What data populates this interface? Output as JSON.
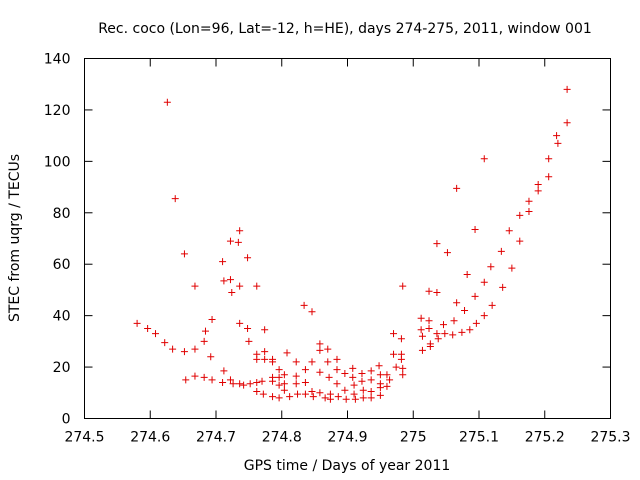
{
  "chart_data": {
    "type": "scatter",
    "title": "Rec. coco (Lon=96, Lat=-12, h=HE), days 274-275, 2011, window 001",
    "xlabel": "GPS time / Days of year 2011",
    "ylabel": "STEC from uqrg / TECUs",
    "xlim": [
      274.5,
      275.3
    ],
    "ylim": [
      0,
      140
    ],
    "xticks": [
      "274.5",
      "274.6",
      "274.7",
      "274.8",
      "274.9",
      "275",
      "275.1",
      "275.2",
      "275.3"
    ],
    "yticks": [
      "0",
      "20",
      "40",
      "60",
      "80",
      "100",
      "120",
      "140"
    ],
    "grid": false,
    "marker": "+",
    "color": "#e00000",
    "points": [
      [
        274.58,
        37.0
      ],
      [
        274.596,
        35.0
      ],
      [
        274.608,
        33.0
      ],
      [
        274.622,
        29.5
      ],
      [
        274.634,
        27.0
      ],
      [
        274.652,
        26.0
      ],
      [
        274.668,
        27.0
      ],
      [
        274.682,
        30.0
      ],
      [
        274.684,
        34.0
      ],
      [
        274.694,
        38.5
      ],
      [
        274.626,
        123.0
      ],
      [
        274.638,
        85.5
      ],
      [
        274.652,
        64.0
      ],
      [
        274.668,
        51.5
      ],
      [
        274.654,
        15.0
      ],
      [
        274.668,
        16.5
      ],
      [
        274.682,
        16.0
      ],
      [
        274.694,
        15.0
      ],
      [
        274.692,
        24.0
      ],
      [
        274.71,
        14.0
      ],
      [
        274.712,
        18.5
      ],
      [
        274.722,
        15.0
      ],
      [
        274.726,
        13.5
      ],
      [
        274.736,
        13.5
      ],
      [
        274.742,
        13.0
      ],
      [
        274.752,
        13.5
      ],
      [
        274.762,
        14.0
      ],
      [
        274.77,
        14.5
      ],
      [
        274.71,
        61.0
      ],
      [
        274.712,
        53.5
      ],
      [
        274.722,
        69.0
      ],
      [
        274.722,
        54.0
      ],
      [
        274.724,
        49.0
      ],
      [
        274.734,
        68.5
      ],
      [
        274.736,
        73.0
      ],
      [
        274.736,
        51.5
      ],
      [
        274.736,
        37.0
      ],
      [
        274.748,
        62.5
      ],
      [
        274.748,
        35.0
      ],
      [
        274.75,
        30.0
      ],
      [
        274.762,
        51.5
      ],
      [
        274.762,
        25.0
      ],
      [
        274.762,
        23.0
      ],
      [
        274.774,
        34.5
      ],
      [
        274.774,
        26.0
      ],
      [
        274.774,
        23.0
      ],
      [
        274.786,
        23.0
      ],
      [
        274.786,
        22.0
      ],
      [
        274.762,
        10.5
      ],
      [
        274.772,
        9.5
      ],
      [
        274.786,
        14.5
      ],
      [
        274.786,
        16.0
      ],
      [
        274.786,
        8.5
      ],
      [
        274.796,
        19.0
      ],
      [
        274.796,
        16.0
      ],
      [
        274.796,
        13.0
      ],
      [
        274.796,
        8.0
      ],
      [
        274.804,
        17.0
      ],
      [
        274.804,
        13.5
      ],
      [
        274.804,
        11.0
      ],
      [
        274.808,
        25.5
      ],
      [
        274.812,
        8.5
      ],
      [
        274.822,
        22.0
      ],
      [
        274.822,
        16.5
      ],
      [
        274.822,
        13.5
      ],
      [
        274.824,
        9.5
      ],
      [
        274.834,
        44.0
      ],
      [
        274.846,
        41.5
      ],
      [
        274.836,
        19.0
      ],
      [
        274.836,
        14.0
      ],
      [
        274.836,
        9.5
      ],
      [
        274.846,
        22.0
      ],
      [
        274.846,
        10.5
      ],
      [
        274.848,
        8.5
      ],
      [
        274.858,
        29.0
      ],
      [
        274.858,
        26.5
      ],
      [
        274.858,
        18.0
      ],
      [
        274.858,
        10.0
      ],
      [
        274.866,
        8.0
      ],
      [
        274.87,
        27.0
      ],
      [
        274.87,
        22.0
      ],
      [
        274.872,
        16.0
      ],
      [
        274.874,
        9.5
      ],
      [
        274.874,
        7.5
      ],
      [
        274.884,
        23.0
      ],
      [
        274.884,
        19.0
      ],
      [
        274.884,
        13.5
      ],
      [
        274.886,
        8.5
      ],
      [
        274.896,
        17.5
      ],
      [
        274.896,
        11.0
      ],
      [
        274.898,
        7.5
      ],
      [
        274.908,
        19.5
      ],
      [
        274.908,
        16.0
      ],
      [
        274.91,
        13.0
      ],
      [
        274.91,
        9.5
      ],
      [
        274.912,
        7.5
      ],
      [
        274.922,
        17.5
      ],
      [
        274.922,
        14.5
      ],
      [
        274.924,
        11.0
      ],
      [
        274.924,
        8.0
      ],
      [
        274.936,
        18.5
      ],
      [
        274.936,
        15.0
      ],
      [
        274.936,
        10.5
      ],
      [
        274.936,
        8.0
      ],
      [
        274.948,
        20.5
      ],
      [
        274.95,
        17.0
      ],
      [
        274.95,
        13.5
      ],
      [
        274.95,
        9.0
      ],
      [
        274.95,
        12.0
      ],
      [
        274.96,
        17.0
      ],
      [
        274.96,
        12.5
      ],
      [
        274.964,
        15.0
      ],
      [
        274.97,
        33.0
      ],
      [
        274.97,
        25.0
      ],
      [
        274.974,
        20.0
      ],
      [
        274.982,
        31.0
      ],
      [
        274.982,
        25.0
      ],
      [
        274.982,
        23.0
      ],
      [
        274.984,
        19.5
      ],
      [
        274.984,
        17.0
      ],
      [
        274.984,
        51.5
      ],
      [
        275.012,
        39.0
      ],
      [
        275.012,
        34.5
      ],
      [
        275.014,
        32.0
      ],
      [
        275.014,
        26.5
      ],
      [
        275.024,
        49.5
      ],
      [
        275.024,
        38.0
      ],
      [
        275.024,
        35.0
      ],
      [
        275.026,
        29.0
      ],
      [
        275.026,
        28.0
      ],
      [
        275.036,
        68.0
      ],
      [
        275.036,
        49.0
      ],
      [
        275.036,
        33.0
      ],
      [
        275.038,
        31.0
      ],
      [
        275.046,
        36.5
      ],
      [
        275.048,
        33.0
      ],
      [
        275.052,
        64.5
      ],
      [
        275.06,
        32.5
      ],
      [
        275.062,
        38.0
      ],
      [
        275.066,
        89.5
      ],
      [
        275.066,
        45.0
      ],
      [
        275.074,
        33.5
      ],
      [
        275.078,
        42.0
      ],
      [
        275.082,
        56.0
      ],
      [
        275.086,
        34.5
      ],
      [
        275.094,
        73.5
      ],
      [
        275.094,
        47.5
      ],
      [
        275.096,
        37.0
      ],
      [
        275.108,
        101.0
      ],
      [
        275.108,
        53.0
      ],
      [
        275.108,
        40.0
      ],
      [
        275.118,
        59.0
      ],
      [
        275.12,
        44.0
      ],
      [
        275.134,
        65.0
      ],
      [
        275.136,
        51.0
      ],
      [
        275.146,
        73.0
      ],
      [
        275.15,
        58.5
      ],
      [
        275.162,
        79.0
      ],
      [
        275.162,
        69.0
      ],
      [
        275.176,
        84.5
      ],
      [
        275.176,
        80.5
      ],
      [
        275.19,
        91.0
      ],
      [
        275.19,
        88.5
      ],
      [
        275.206,
        101.0
      ],
      [
        275.206,
        94.0
      ],
      [
        275.218,
        110.0
      ],
      [
        275.22,
        107.0
      ],
      [
        275.234,
        128.0
      ],
      [
        275.234,
        115.0
      ]
    ]
  }
}
